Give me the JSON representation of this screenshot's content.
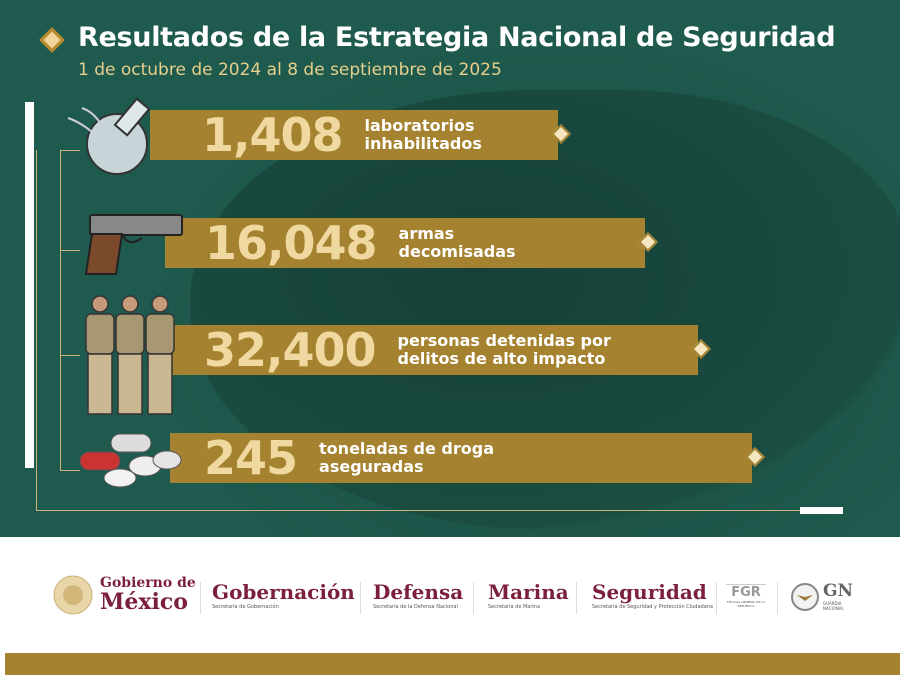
{
  "header": {
    "title": "Resultados de la Estrategia Nacional de Seguridad",
    "subtitle": "1 de octubre de 2024 al 8 de septiembre de 2025"
  },
  "colors": {
    "background": "#1f5a4e",
    "bar": "#a5822f",
    "number": "#f0d9a0",
    "accent": "#e7cf8c",
    "brand": "#7b1f3a"
  },
  "stats": [
    {
      "value": "1,408",
      "label1": "laboratorios",
      "label2": "inhabilitados",
      "icon": "broken-flask-icon"
    },
    {
      "value": "16,048",
      "label1": "armas",
      "label2": "decomisadas",
      "icon": "pistol-icon"
    },
    {
      "value": "32,400",
      "label1": "personas detenidas por",
      "label2": "delitos de alto impacto",
      "icon": "detainees-icon"
    },
    {
      "value": "245",
      "label1": "toneladas de droga",
      "label2": "aseguradas",
      "icon": "pills-icon"
    }
  ],
  "footer": {
    "gobierno_line1": "Gobierno de",
    "gobierno_line2": "México",
    "gobernacion": "Gobernación",
    "gobernacion_sub": "Secretaría de Gobernación",
    "defensa": "Defensa",
    "defensa_sub": "Secretaría de la Defensa Nacional",
    "marina": "Marina",
    "marina_sub": "Secretaría de Marina",
    "seguridad": "Seguridad",
    "seguridad_sub": "Secretaría de Seguridad y Protección Ciudadana",
    "fgr": "FGR",
    "fgr_sub": "FISCALÍA GENERAL DE LA REPÚBLICA",
    "gn": "GN",
    "gn_sub": "GUARDIA NACIONAL"
  }
}
